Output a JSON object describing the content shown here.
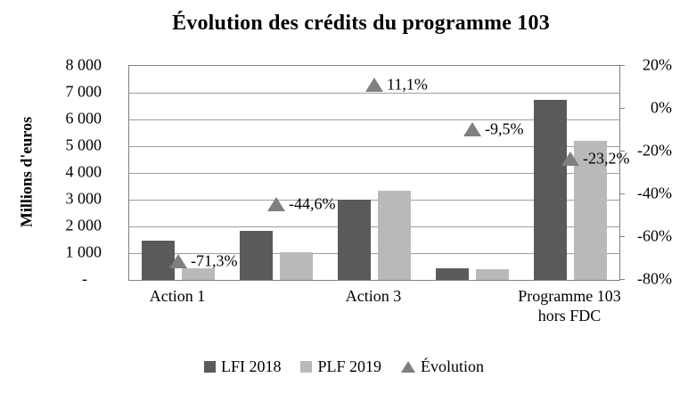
{
  "chart_data": {
    "type": "bar",
    "title": "Évolution des crédits du programme 103",
    "y_left": {
      "title": "Millions d'euros",
      "min": 0,
      "max": 8000,
      "step": 1000,
      "ticks": [
        {
          "label": "8 000",
          "value": 8000
        },
        {
          "label": "7 000",
          "value": 7000
        },
        {
          "label": "6 000",
          "value": 6000
        },
        {
          "label": "5 000",
          "value": 5000
        },
        {
          "label": "4 000",
          "value": 4000
        },
        {
          "label": "3 000",
          "value": 3000
        },
        {
          "label": "2 000",
          "value": 2000
        },
        {
          "label": "1 000",
          "value": 1000
        },
        {
          "label": "-",
          "value": 0
        }
      ]
    },
    "y_right": {
      "min": -80,
      "max": 20,
      "step": 20,
      "ticks": [
        {
          "label": "20%",
          "value": 20
        },
        {
          "label": "0%",
          "value": 0
        },
        {
          "label": "-20%",
          "value": -20
        },
        {
          "label": "-40%",
          "value": -40
        },
        {
          "label": "-60%",
          "value": -60
        },
        {
          "label": "-80%",
          "value": -80
        }
      ]
    },
    "categories": [
      "Action 1",
      "",
      "Action 3",
      "",
      "Programme 103 hors FDC"
    ],
    "series": [
      {
        "name": "LFI 2018",
        "color": "#5a5a5a",
        "values": [
          1480,
          1850,
          3000,
          440,
          6750
        ]
      },
      {
        "name": "PLF 2019",
        "color": "#b9b9b9",
        "values": [
          425,
          1025,
          3335,
          398,
          5185
        ]
      }
    ],
    "evolution": {
      "name": "Évolution",
      "color": "#7f7f7f",
      "values": [
        -71.3,
        -44.6,
        11.1,
        -9.5,
        -23.2
      ],
      "labels": [
        "-71,3%",
        "-44,6%",
        "11,1%",
        "-9,5%",
        "-23,2%"
      ]
    },
    "legend": [
      {
        "label": "LFI 2018",
        "marker": "square",
        "color": "#5a5a5a"
      },
      {
        "label": "PLF 2019",
        "marker": "square",
        "color": "#b9b9b9"
      },
      {
        "label": "Évolution",
        "marker": "triangle",
        "color": "#7f7f7f"
      }
    ],
    "layout": {
      "grid": true,
      "legend_position": "bottom",
      "gridline_color": "#9f9f9f",
      "axis_color": "#7f7f7f"
    }
  }
}
